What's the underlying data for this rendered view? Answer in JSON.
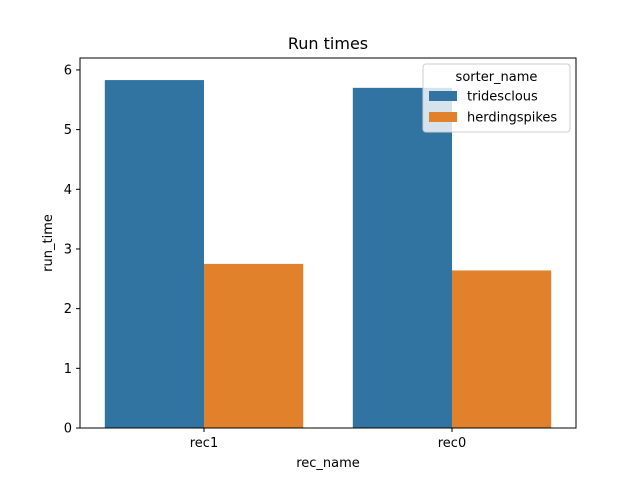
{
  "chart_data": {
    "type": "bar",
    "title": "Run times",
    "xlabel": "rec_name",
    "ylabel": "run_time",
    "categories": [
      "rec1",
      "rec0"
    ],
    "ylim": [
      0,
      6.2
    ],
    "yticks": [
      0,
      1,
      2,
      3,
      4,
      5,
      6
    ],
    "grid": false,
    "legend": {
      "title": "sorter_name",
      "placement": "top-right"
    },
    "series": [
      {
        "name": "tridesclous",
        "color": "#3274a1",
        "values": [
          5.83,
          5.7
        ]
      },
      {
        "name": "herdingspikes",
        "color": "#e1812c",
        "values": [
          2.75,
          2.64
        ]
      }
    ]
  }
}
